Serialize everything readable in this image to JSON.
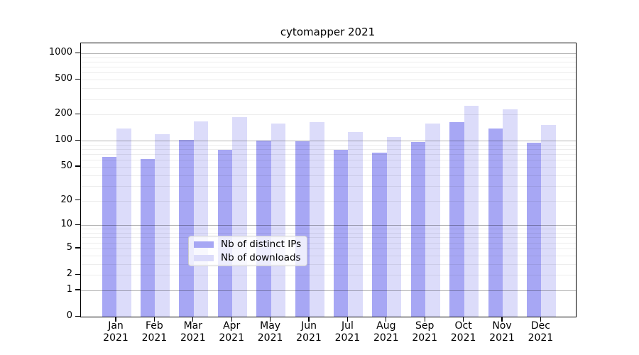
{
  "chart_data": {
    "type": "bar",
    "title": "cytomapper 2021",
    "categories": [
      "Jan",
      "Feb",
      "Mar",
      "Apr",
      "May",
      "Jun",
      "Jul",
      "Aug",
      "Sep",
      "Oct",
      "Nov",
      "Dec"
    ],
    "x_tick_year": "2021",
    "series": [
      {
        "name": "Nb of distinct IPs",
        "color": "#a7a7f4",
        "values": [
          65,
          62,
          102,
          79,
          101,
          98,
          79,
          73,
          96,
          165,
          137,
          95
        ]
      },
      {
        "name": "Nb of downloads",
        "color": "#dcdcfa",
        "values": [
          138,
          118,
          166,
          186,
          159,
          165,
          126,
          110,
          158,
          250,
          231,
          152
        ]
      }
    ],
    "yscale": "log1p",
    "ylim": [
      0,
      1300
    ],
    "y_ticks": [
      1000,
      500,
      200,
      100,
      50,
      20,
      10,
      5,
      2,
      1,
      0
    ],
    "grid": {
      "major": [
        1,
        10,
        100,
        1000
      ],
      "minor_multipliers": [
        2,
        3,
        4,
        5,
        6,
        7,
        8,
        9
      ],
      "minor_decades": [
        1,
        10,
        100
      ]
    },
    "legend_position": "lower center",
    "colors": {
      "grid_major": "#b5b5b5",
      "grid_minor": "#ededed",
      "axis": "#000000",
      "background": "#ffffff"
    }
  }
}
